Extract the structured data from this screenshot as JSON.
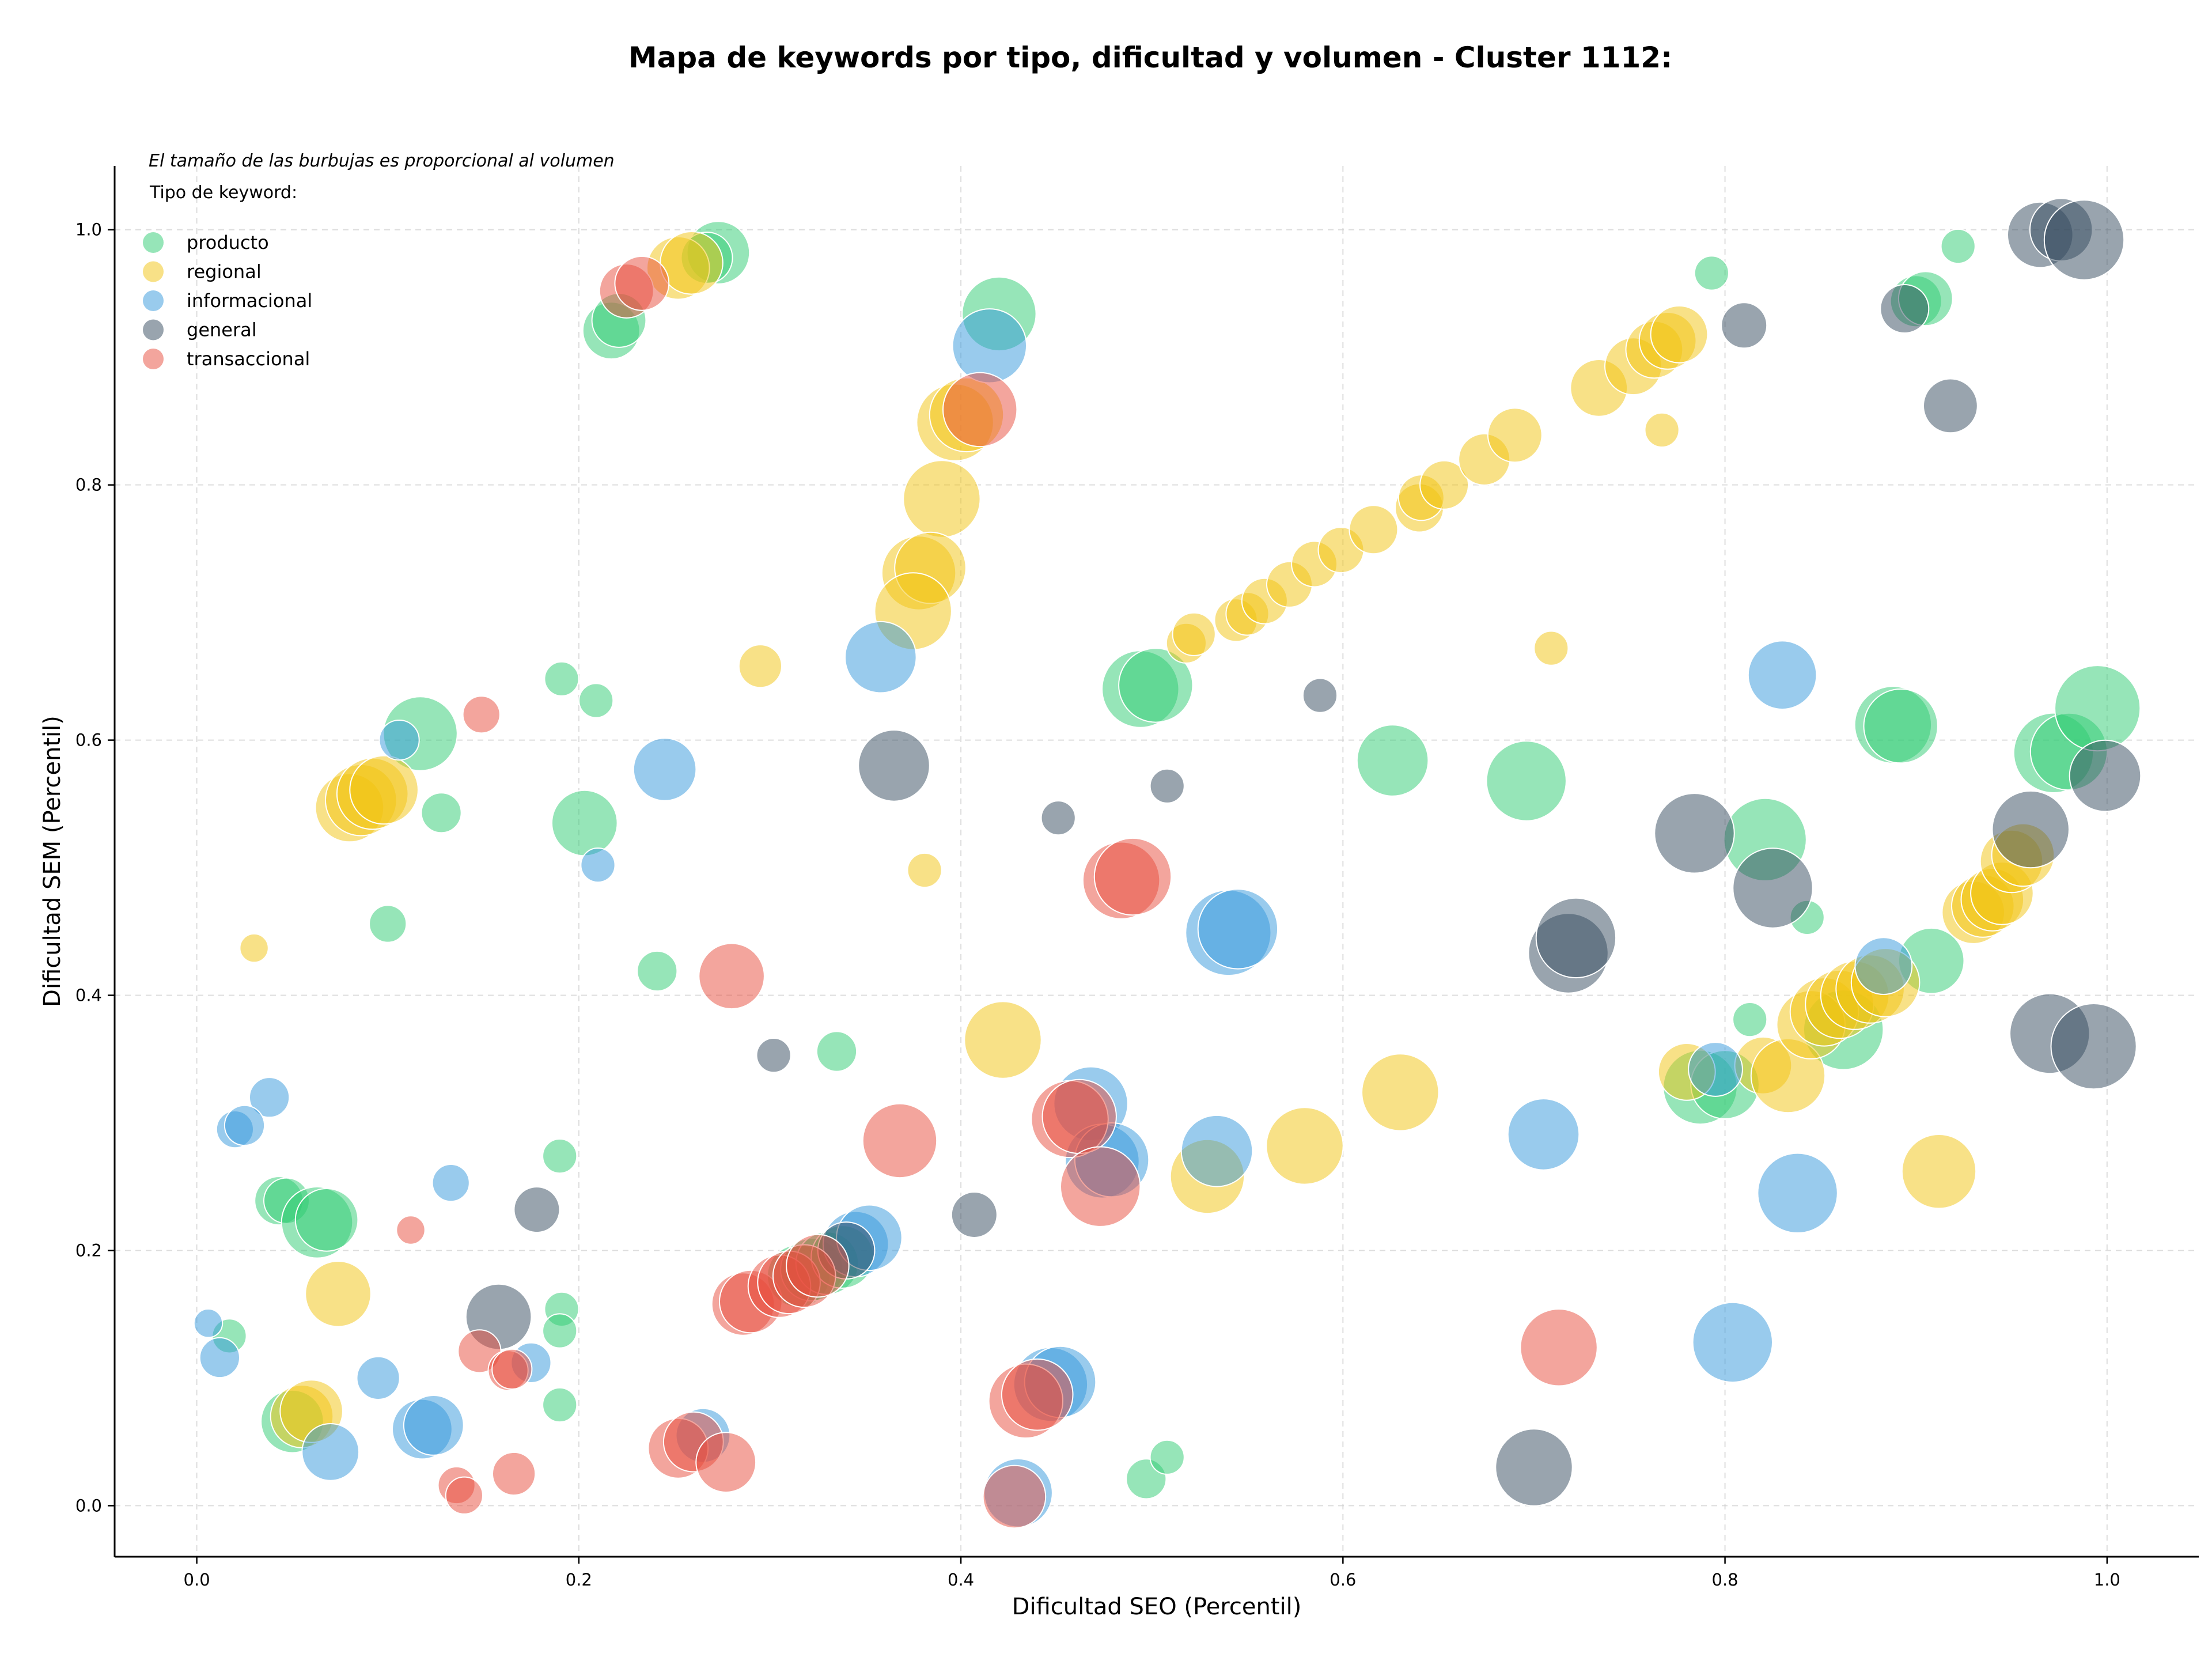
{
  "chart_data": {
    "type": "scatter",
    "title": "Mapa de keywords por tipo, dificultad y volumen - Cluster 1112:",
    "note": "El tamaño de las burbujas es proporcional al volumen",
    "xlabel": "Dificultad SEO (Percentil)",
    "ylabel": "Dificultad SEM (Percentil)",
    "xlim": [
      -0.043,
      1.048
    ],
    "ylim": [
      -0.04,
      1.05
    ],
    "xticks": [
      "0.0",
      "0.2",
      "0.4",
      "0.6",
      "0.8",
      "1.0"
    ],
    "yticks": [
      "0.0",
      "0.2",
      "0.4",
      "0.6",
      "0.8",
      "1.0"
    ],
    "grid": true,
    "legend_title": "Tipo de keyword:",
    "legend_position": "top-left",
    "series": [
      {
        "name": "producto",
        "color": "#2ecc71",
        "points": [
          {
            "x": 0.273,
            "y": 0.982,
            "s": 22
          },
          {
            "x": 0.267,
            "y": 0.978,
            "s": 18
          },
          {
            "x": 0.217,
            "y": 0.921,
            "s": 20
          },
          {
            "x": 0.221,
            "y": 0.929,
            "s": 19
          },
          {
            "x": 0.42,
            "y": 0.934,
            "s": 26
          },
          {
            "x": 0.922,
            "y": 0.987,
            "s": 12
          },
          {
            "x": 0.793,
            "y": 0.966,
            "s": 12
          },
          {
            "x": 0.9,
            "y": 0.944,
            "s": 18
          },
          {
            "x": 0.905,
            "y": 0.946,
            "s": 19
          },
          {
            "x": 0.117,
            "y": 0.605,
            "s": 26
          },
          {
            "x": 0.191,
            "y": 0.648,
            "s": 12
          },
          {
            "x": 0.209,
            "y": 0.631,
            "s": 12
          },
          {
            "x": 0.128,
            "y": 0.543,
            "s": 14
          },
          {
            "x": 0.203,
            "y": 0.535,
            "s": 23
          },
          {
            "x": 0.1,
            "y": 0.456,
            "s": 13
          },
          {
            "x": 0.241,
            "y": 0.419,
            "s": 14
          },
          {
            "x": 0.335,
            "y": 0.356,
            "s": 14
          },
          {
            "x": 0.494,
            "y": 0.64,
            "s": 27
          },
          {
            "x": 0.502,
            "y": 0.643,
            "s": 26
          },
          {
            "x": 0.626,
            "y": 0.584,
            "s": 25
          },
          {
            "x": 0.696,
            "y": 0.568,
            "s": 28
          },
          {
            "x": 0.888,
            "y": 0.612,
            "s": 27
          },
          {
            "x": 0.892,
            "y": 0.611,
            "s": 26
          },
          {
            "x": 0.972,
            "y": 0.59,
            "s": 28
          },
          {
            "x": 0.98,
            "y": 0.591,
            "s": 27
          },
          {
            "x": 0.995,
            "y": 0.625,
            "s": 30
          },
          {
            "x": 0.821,
            "y": 0.522,
            "s": 29
          },
          {
            "x": 0.843,
            "y": 0.461,
            "s": 12
          },
          {
            "x": 0.813,
            "y": 0.381,
            "s": 12
          },
          {
            "x": 0.908,
            "y": 0.427,
            "s": 23
          },
          {
            "x": 0.862,
            "y": 0.373,
            "s": 28
          },
          {
            "x": 0.787,
            "y": 0.328,
            "s": 26
          },
          {
            "x": 0.8,
            "y": 0.33,
            "s": 24
          },
          {
            "x": 0.043,
            "y": 0.239,
            "s": 17
          },
          {
            "x": 0.047,
            "y": 0.239,
            "s": 16
          },
          {
            "x": 0.063,
            "y": 0.222,
            "s": 25
          },
          {
            "x": 0.068,
            "y": 0.224,
            "s": 22
          },
          {
            "x": 0.19,
            "y": 0.274,
            "s": 12
          },
          {
            "x": 0.191,
            "y": 0.154,
            "s": 12
          },
          {
            "x": 0.19,
            "y": 0.137,
            "s": 12
          },
          {
            "x": 0.017,
            "y": 0.133,
            "s": 12
          },
          {
            "x": 0.05,
            "y": 0.066,
            "s": 22
          },
          {
            "x": 0.19,
            "y": 0.079,
            "s": 12
          },
          {
            "x": 0.497,
            "y": 0.021,
            "s": 14
          },
          {
            "x": 0.508,
            "y": 0.038,
            "s": 12
          },
          {
            "x": 0.315,
            "y": 0.18,
            "s": 22
          },
          {
            "x": 0.322,
            "y": 0.185,
            "s": 22
          },
          {
            "x": 0.33,
            "y": 0.19,
            "s": 22
          },
          {
            "x": 0.338,
            "y": 0.195,
            "s": 22
          }
        ]
      },
      {
        "name": "regional",
        "color": "#f1c40f",
        "points": [
          {
            "x": 0.252,
            "y": 0.97,
            "s": 22
          },
          {
            "x": 0.259,
            "y": 0.974,
            "s": 22
          },
          {
            "x": 0.397,
            "y": 0.849,
            "s": 27
          },
          {
            "x": 0.403,
            "y": 0.855,
            "s": 26
          },
          {
            "x": 0.39,
            "y": 0.789,
            "s": 27
          },
          {
            "x": 0.378,
            "y": 0.731,
            "s": 26
          },
          {
            "x": 0.384,
            "y": 0.735,
            "s": 25
          },
          {
            "x": 0.375,
            "y": 0.701,
            "s": 27
          },
          {
            "x": 0.295,
            "y": 0.658,
            "s": 15
          },
          {
            "x": 0.08,
            "y": 0.547,
            "s": 24
          },
          {
            "x": 0.086,
            "y": 0.553,
            "s": 25
          },
          {
            "x": 0.092,
            "y": 0.558,
            "s": 25
          },
          {
            "x": 0.098,
            "y": 0.561,
            "s": 24
          },
          {
            "x": 0.03,
            "y": 0.437,
            "s": 10
          },
          {
            "x": 0.381,
            "y": 0.498,
            "s": 12
          },
          {
            "x": 0.422,
            "y": 0.365,
            "s": 27
          },
          {
            "x": 0.074,
            "y": 0.166,
            "s": 23
          },
          {
            "x": 0.055,
            "y": 0.07,
            "s": 22
          },
          {
            "x": 0.06,
            "y": 0.074,
            "s": 22
          },
          {
            "x": 0.529,
            "y": 0.258,
            "s": 26
          },
          {
            "x": 0.58,
            "y": 0.282,
            "s": 27
          },
          {
            "x": 0.63,
            "y": 0.324,
            "s": 27
          },
          {
            "x": 0.912,
            "y": 0.262,
            "s": 26
          },
          {
            "x": 0.518,
            "y": 0.676,
            "s": 14
          },
          {
            "x": 0.522,
            "y": 0.683,
            "s": 15
          },
          {
            "x": 0.544,
            "y": 0.694,
            "s": 15
          },
          {
            "x": 0.55,
            "y": 0.699,
            "s": 15
          },
          {
            "x": 0.559,
            "y": 0.709,
            "s": 16
          },
          {
            "x": 0.572,
            "y": 0.722,
            "s": 16
          },
          {
            "x": 0.585,
            "y": 0.738,
            "s": 16
          },
          {
            "x": 0.599,
            "y": 0.749,
            "s": 16
          },
          {
            "x": 0.616,
            "y": 0.765,
            "s": 17
          },
          {
            "x": 0.64,
            "y": 0.782,
            "s": 17
          },
          {
            "x": 0.641,
            "y": 0.79,
            "s": 16
          },
          {
            "x": 0.653,
            "y": 0.8,
            "s": 17
          },
          {
            "x": 0.674,
            "y": 0.82,
            "s": 18
          },
          {
            "x": 0.69,
            "y": 0.839,
            "s": 19
          },
          {
            "x": 0.734,
            "y": 0.876,
            "s": 20
          },
          {
            "x": 0.752,
            "y": 0.893,
            "s": 20
          },
          {
            "x": 0.763,
            "y": 0.906,
            "s": 20
          },
          {
            "x": 0.77,
            "y": 0.913,
            "s": 20
          },
          {
            "x": 0.776,
            "y": 0.918,
            "s": 20
          },
          {
            "x": 0.767,
            "y": 0.843,
            "s": 12
          },
          {
            "x": 0.709,
            "y": 0.672,
            "s": 12
          },
          {
            "x": 0.78,
            "y": 0.34,
            "s": 20
          },
          {
            "x": 0.82,
            "y": 0.345,
            "s": 20
          },
          {
            "x": 0.833,
            "y": 0.337,
            "s": 26
          },
          {
            "x": 0.845,
            "y": 0.377,
            "s": 24
          },
          {
            "x": 0.852,
            "y": 0.387,
            "s": 24
          },
          {
            "x": 0.86,
            "y": 0.393,
            "s": 24
          },
          {
            "x": 0.868,
            "y": 0.4,
            "s": 24
          },
          {
            "x": 0.876,
            "y": 0.405,
            "s": 24
          },
          {
            "x": 0.884,
            "y": 0.41,
            "s": 24
          },
          {
            "x": 0.93,
            "y": 0.465,
            "s": 22
          },
          {
            "x": 0.935,
            "y": 0.47,
            "s": 22
          },
          {
            "x": 0.94,
            "y": 0.475,
            "s": 22
          },
          {
            "x": 0.945,
            "y": 0.48,
            "s": 22
          },
          {
            "x": 0.95,
            "y": 0.505,
            "s": 22
          },
          {
            "x": 0.956,
            "y": 0.51,
            "s": 22
          }
        ]
      },
      {
        "name": "informacional",
        "color": "#3498db",
        "points": [
          {
            "x": 0.415,
            "y": 0.909,
            "s": 26
          },
          {
            "x": 0.358,
            "y": 0.665,
            "s": 25
          },
          {
            "x": 0.106,
            "y": 0.6,
            "s": 14
          },
          {
            "x": 0.245,
            "y": 0.577,
            "s": 22
          },
          {
            "x": 0.21,
            "y": 0.502,
            "s": 12
          },
          {
            "x": 0.54,
            "y": 0.449,
            "s": 30
          },
          {
            "x": 0.545,
            "y": 0.452,
            "s": 28
          },
          {
            "x": 0.83,
            "y": 0.651,
            "s": 24
          },
          {
            "x": 0.883,
            "y": 0.423,
            "s": 20
          },
          {
            "x": 0.038,
            "y": 0.32,
            "s": 14
          },
          {
            "x": 0.02,
            "y": 0.295,
            "s": 13
          },
          {
            "x": 0.025,
            "y": 0.298,
            "s": 14
          },
          {
            "x": 0.133,
            "y": 0.253,
            "s": 13
          },
          {
            "x": 0.006,
            "y": 0.143,
            "s": 10
          },
          {
            "x": 0.012,
            "y": 0.116,
            "s": 14
          },
          {
            "x": 0.095,
            "y": 0.1,
            "s": 15
          },
          {
            "x": 0.175,
            "y": 0.112,
            "s": 14
          },
          {
            "x": 0.07,
            "y": 0.042,
            "s": 20
          },
          {
            "x": 0.118,
            "y": 0.06,
            "s": 21
          },
          {
            "x": 0.124,
            "y": 0.063,
            "s": 21
          },
          {
            "x": 0.265,
            "y": 0.055,
            "s": 19
          },
          {
            "x": 0.43,
            "y": 0.01,
            "s": 24
          },
          {
            "x": 0.447,
            "y": 0.095,
            "s": 26
          },
          {
            "x": 0.452,
            "y": 0.097,
            "s": 25
          },
          {
            "x": 0.468,
            "y": 0.315,
            "s": 26
          },
          {
            "x": 0.474,
            "y": 0.27,
            "s": 26
          },
          {
            "x": 0.479,
            "y": 0.271,
            "s": 26
          },
          {
            "x": 0.534,
            "y": 0.278,
            "s": 25
          },
          {
            "x": 0.705,
            "y": 0.291,
            "s": 25
          },
          {
            "x": 0.795,
            "y": 0.342,
            "s": 19
          },
          {
            "x": 0.838,
            "y": 0.245,
            "s": 28
          },
          {
            "x": 0.804,
            "y": 0.128,
            "s": 28
          },
          {
            "x": 0.345,
            "y": 0.205,
            "s": 23
          },
          {
            "x": 0.352,
            "y": 0.21,
            "s": 23
          }
        ]
      },
      {
        "name": "general",
        "color": "#34495e",
        "points": [
          {
            "x": 0.365,
            "y": 0.58,
            "s": 25
          },
          {
            "x": 0.302,
            "y": 0.353,
            "s": 12
          },
          {
            "x": 0.178,
            "y": 0.232,
            "s": 16
          },
          {
            "x": 0.158,
            "y": 0.148,
            "s": 23
          },
          {
            "x": 0.407,
            "y": 0.228,
            "s": 16
          },
          {
            "x": 0.451,
            "y": 0.539,
            "s": 12
          },
          {
            "x": 0.508,
            "y": 0.564,
            "s": 12
          },
          {
            "x": 0.588,
            "y": 0.635,
            "s": 12
          },
          {
            "x": 0.7,
            "y": 0.03,
            "s": 27
          },
          {
            "x": 0.718,
            "y": 0.433,
            "s": 28
          },
          {
            "x": 0.722,
            "y": 0.445,
            "s": 28
          },
          {
            "x": 0.784,
            "y": 0.527,
            "s": 28
          },
          {
            "x": 0.825,
            "y": 0.484,
            "s": 28
          },
          {
            "x": 0.81,
            "y": 0.925,
            "s": 16
          },
          {
            "x": 0.894,
            "y": 0.938,
            "s": 17
          },
          {
            "x": 0.918,
            "y": 0.862,
            "s": 19
          },
          {
            "x": 0.965,
            "y": 0.996,
            "s": 23
          },
          {
            "x": 0.976,
            "y": 1.0,
            "s": 22
          },
          {
            "x": 0.988,
            "y": 0.992,
            "s": 28
          },
          {
            "x": 0.96,
            "y": 0.53,
            "s": 27
          },
          {
            "x": 0.999,
            "y": 0.572,
            "s": 25
          },
          {
            "x": 0.97,
            "y": 0.37,
            "s": 28
          },
          {
            "x": 0.993,
            "y": 0.36,
            "s": 30
          },
          {
            "x": 0.34,
            "y": 0.2,
            "s": 20
          }
        ]
      },
      {
        "name": "transaccional",
        "color": "#e74c3c",
        "points": [
          {
            "x": 0.225,
            "y": 0.952,
            "s": 19
          },
          {
            "x": 0.233,
            "y": 0.958,
            "s": 19
          },
          {
            "x": 0.41,
            "y": 0.859,
            "s": 26
          },
          {
            "x": 0.149,
            "y": 0.62,
            "s": 13
          },
          {
            "x": 0.28,
            "y": 0.415,
            "s": 23
          },
          {
            "x": 0.484,
            "y": 0.49,
            "s": 27
          },
          {
            "x": 0.49,
            "y": 0.493,
            "s": 27
          },
          {
            "x": 0.368,
            "y": 0.286,
            "s": 26
          },
          {
            "x": 0.457,
            "y": 0.303,
            "s": 27
          },
          {
            "x": 0.462,
            "y": 0.305,
            "s": 26
          },
          {
            "x": 0.473,
            "y": 0.25,
            "s": 28
          },
          {
            "x": 0.112,
            "y": 0.216,
            "s": 10
          },
          {
            "x": 0.148,
            "y": 0.121,
            "s": 15
          },
          {
            "x": 0.163,
            "y": 0.106,
            "s": 14
          },
          {
            "x": 0.165,
            "y": 0.107,
            "s": 14
          },
          {
            "x": 0.166,
            "y": 0.025,
            "s": 15
          },
          {
            "x": 0.136,
            "y": 0.016,
            "s": 13
          },
          {
            "x": 0.14,
            "y": 0.008,
            "s": 13
          },
          {
            "x": 0.252,
            "y": 0.045,
            "s": 21
          },
          {
            "x": 0.26,
            "y": 0.05,
            "s": 21
          },
          {
            "x": 0.277,
            "y": 0.034,
            "s": 21
          },
          {
            "x": 0.286,
            "y": 0.158,
            "s": 22
          },
          {
            "x": 0.29,
            "y": 0.16,
            "s": 22
          },
          {
            "x": 0.305,
            "y": 0.172,
            "s": 22
          },
          {
            "x": 0.31,
            "y": 0.175,
            "s": 22
          },
          {
            "x": 0.318,
            "y": 0.18,
            "s": 22
          },
          {
            "x": 0.325,
            "y": 0.188,
            "s": 22
          },
          {
            "x": 0.428,
            "y": 0.007,
            "s": 22
          },
          {
            "x": 0.434,
            "y": 0.082,
            "s": 26
          },
          {
            "x": 0.44,
            "y": 0.087,
            "s": 25
          },
          {
            "x": 0.713,
            "y": 0.124,
            "s": 27
          }
        ]
      }
    ]
  }
}
